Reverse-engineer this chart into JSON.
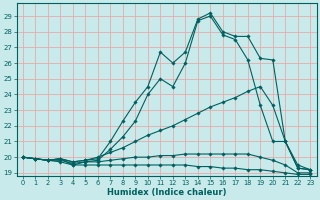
{
  "title": "",
  "xlabel": "Humidex (Indice chaleur)",
  "ylabel": "",
  "bg_color": "#c8eaea",
  "grid_color": "#e8aaaa",
  "line_color": "#006060",
  "xlim": [
    -0.5,
    23.5
  ],
  "ylim": [
    18.8,
    29.8
  ],
  "yticks": [
    19,
    20,
    21,
    22,
    23,
    24,
    25,
    26,
    27,
    28,
    29
  ],
  "xticks": [
    0,
    1,
    2,
    3,
    4,
    5,
    6,
    7,
    8,
    9,
    10,
    11,
    12,
    13,
    14,
    15,
    16,
    17,
    18,
    19,
    20,
    21,
    22,
    23
  ],
  "lines": [
    {
      "x": [
        0,
        1,
        2,
        3,
        4,
        5,
        6,
        7,
        8,
        9,
        10,
        11,
        12,
        13,
        14,
        15,
        16,
        17,
        18,
        19,
        20,
        21,
        22,
        23
      ],
      "y": [
        20,
        19.9,
        19.8,
        19.9,
        19.7,
        19.8,
        19.9,
        21.0,
        22.3,
        23.5,
        24.5,
        26.7,
        26.0,
        26.7,
        28.8,
        29.2,
        28.0,
        27.7,
        27.7,
        26.3,
        26.2,
        21.0,
        19.5,
        19.2
      ]
    },
    {
      "x": [
        0,
        1,
        2,
        3,
        4,
        5,
        6,
        7,
        8,
        9,
        10,
        11,
        12,
        13,
        14,
        15,
        16,
        17,
        18,
        19,
        20,
        21,
        22,
        23
      ],
      "y": [
        20,
        19.9,
        19.8,
        19.9,
        19.5,
        19.7,
        19.8,
        20.5,
        21.3,
        22.3,
        24.0,
        25.0,
        24.5,
        26.0,
        28.7,
        29.0,
        27.8,
        27.5,
        26.2,
        23.3,
        21.0,
        21.0,
        19.3,
        19.2
      ]
    },
    {
      "x": [
        0,
        1,
        2,
        3,
        4,
        5,
        6,
        7,
        8,
        9,
        10,
        11,
        12,
        13,
        14,
        15,
        16,
        17,
        18,
        19,
        20,
        21,
        22,
        23
      ],
      "y": [
        20,
        19.9,
        19.8,
        19.9,
        19.7,
        19.8,
        20.0,
        20.3,
        20.6,
        21.0,
        21.4,
        21.7,
        22.0,
        22.4,
        22.8,
        23.2,
        23.5,
        23.8,
        24.2,
        24.5,
        23.3,
        21.0,
        19.3,
        19.2
      ]
    },
    {
      "x": [
        0,
        1,
        2,
        3,
        4,
        5,
        6,
        7,
        8,
        9,
        10,
        11,
        12,
        13,
        14,
        15,
        16,
        17,
        18,
        19,
        20,
        21,
        22,
        23
      ],
      "y": [
        20,
        19.9,
        19.8,
        19.8,
        19.6,
        19.7,
        19.7,
        19.8,
        19.9,
        20.0,
        20.0,
        20.1,
        20.1,
        20.2,
        20.2,
        20.2,
        20.2,
        20.2,
        20.2,
        20.0,
        19.8,
        19.5,
        19.0,
        19.0
      ]
    },
    {
      "x": [
        0,
        1,
        2,
        3,
        4,
        5,
        6,
        7,
        8,
        9,
        10,
        11,
        12,
        13,
        14,
        15,
        16,
        17,
        18,
        19,
        20,
        21,
        22,
        23
      ],
      "y": [
        20,
        19.9,
        19.8,
        19.7,
        19.5,
        19.5,
        19.5,
        19.5,
        19.5,
        19.5,
        19.5,
        19.5,
        19.5,
        19.5,
        19.4,
        19.4,
        19.3,
        19.3,
        19.2,
        19.2,
        19.1,
        19.0,
        18.9,
        18.9
      ]
    }
  ]
}
